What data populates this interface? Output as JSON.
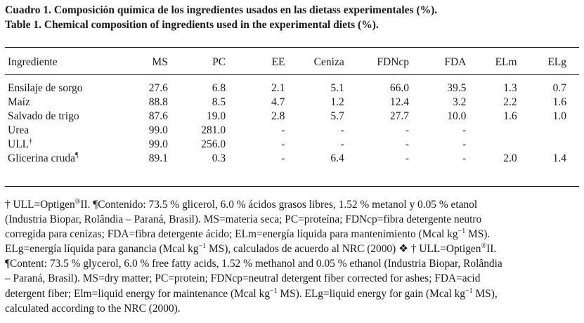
{
  "caption": {
    "es": "Cuadro 1. Composición química de los ingredientes usados en las dietass experimentales (%).",
    "en": "Table 1. Chemical composition of ingredients used in the experimental diets (%)."
  },
  "table": {
    "headers": [
      "Ingrediente",
      "MS",
      "PC",
      "EE",
      "Ceniza",
      "FDNcp",
      "FDA",
      "ELm",
      "ELg"
    ],
    "rows": [
      {
        "name": "Ensilaje de sorgo",
        "sup": "",
        "cells": [
          "27.6",
          "6.8",
          "2.1",
          "5.1",
          "66.0",
          "39.5",
          "1.3",
          "0.7"
        ]
      },
      {
        "name": "Maíz",
        "sup": "",
        "cells": [
          "88.8",
          "8.5",
          "4.7",
          "1.2",
          "12.4",
          "3.2",
          "2.2",
          "1.6"
        ]
      },
      {
        "name": "Salvado de trigo",
        "sup": "",
        "cells": [
          "87.6",
          "19.0",
          "2.8",
          "5.7",
          "27.7",
          "10.0",
          "1.6",
          "1.0"
        ]
      },
      {
        "name": "Urea",
        "sup": "",
        "cells": [
          "99.0",
          "281.0",
          "-",
          "-",
          "-",
          "-",
          "",
          ""
        ]
      },
      {
        "name": "ULL",
        "sup": "†",
        "cells": [
          "99.0",
          "256.0",
          "-",
          "-",
          "-",
          "-",
          "",
          ""
        ]
      },
      {
        "name": "Glicerina cruda",
        "sup": "¶",
        "cells": [
          "89.1",
          "0.3",
          "-",
          "6.4",
          "-",
          "-",
          "2.0",
          "1.4"
        ]
      }
    ]
  },
  "footnote": {
    "lines": [
      [
        "† ULL=Optigen",
        "®",
        "II. ¶Contenido: 73.5 % glicerol, 6.0 % ácidos grasos libres, 1.52 % metanol y 0.05 % etanol"
      ],
      [
        "(Industria Biopar, Rolândia – Paraná, Brasil). MS=materia seca; PC=proteína; FDNcp=fibra detergente neutro"
      ],
      [
        "corregida para cenizas; FDA=fibra detergente ácido; ELm=energía líquida para mantenimiento (Mcal kg",
        "−1",
        " MS)."
      ],
      [
        "ELg=energía líquida para ganancia (Mcal kg",
        "−1",
        " MS), calculados de acuerdo al NRC (2000) ❖ † ULL=Optigen",
        "®",
        "II."
      ],
      [
        "¶Content: 73.5 % glycerol, 6.0 % free fatty acids, 1.52 % methanol and 0.05 % ethanol (Industria Biopar, Rolândia"
      ],
      [
        "– Paraná, Brasil). MS=dry matter; PC=protein; FDNcp=neutral detergent fiber corrected for ashes; FDA=acid"
      ],
      [
        "detergent fiber; Elm=liquid energy for maintenance (Mcal kg",
        "−1",
        " MS). ELg=liquid energy for gain (Mcal kg",
        "−1",
        " MS),"
      ],
      [
        "calculated according to the NRC (2000)."
      ]
    ]
  }
}
